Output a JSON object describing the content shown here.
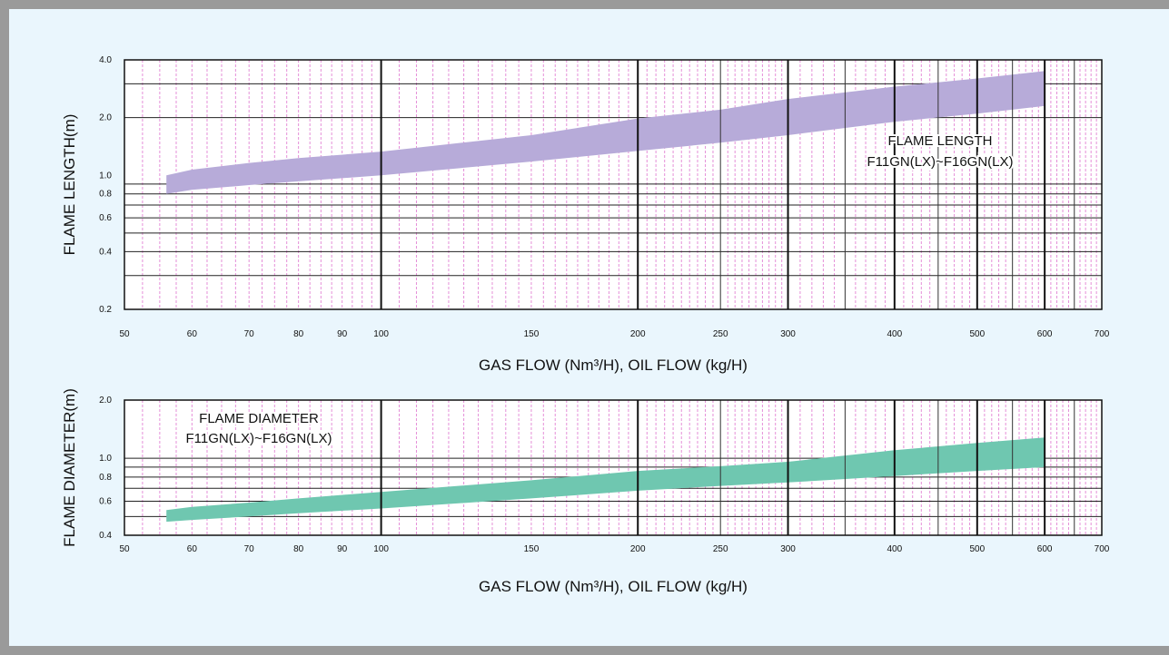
{
  "chart_data": [
    {
      "type": "area",
      "name": "flame-length",
      "x_scale": "log",
      "y_scale": "log",
      "xlim": [
        50,
        700
      ],
      "ylim": [
        0.2,
        4.0
      ],
      "x_ticks": [
        50,
        60,
        70,
        80,
        90,
        100,
        150,
        200,
        250,
        300,
        400,
        500,
        600,
        700
      ],
      "x_tick_labels": [
        "50",
        "60",
        "70",
        "80",
        "90",
        "100",
        "150",
        "200",
        "250",
        "300",
        "400",
        "500",
        "600",
        "700"
      ],
      "y_ticks": [
        0.2,
        0.4,
        0.6,
        0.8,
        1.0,
        2.0,
        4.0
      ],
      "y_tick_labels": [
        "0.2",
        "0.4",
        "0.6",
        "0.8",
        "1.0",
        "2.0",
        "4.0"
      ],
      "ylabel": "FLAME LENGTH(m)",
      "xlabel": "GAS FLOW  (Nm³/H), OIL FLOW (kg/H)",
      "annotation": [
        "FLAME LENGTH",
        "F11GN(LX)~F16GN(LX)"
      ],
      "color": "#b7abd9",
      "band": {
        "x": [
          56,
          60,
          70,
          80,
          100,
          150,
          200,
          250,
          300,
          400,
          500,
          600
        ],
        "lower": [
          0.8,
          0.84,
          0.89,
          0.93,
          1.0,
          1.18,
          1.34,
          1.48,
          1.62,
          1.9,
          2.1,
          2.3
        ],
        "upper": [
          1.0,
          1.07,
          1.16,
          1.23,
          1.33,
          1.62,
          1.98,
          2.2,
          2.5,
          2.9,
          3.2,
          3.5
        ]
      }
    },
    {
      "type": "area",
      "name": "flame-diameter",
      "x_scale": "log",
      "y_scale": "log",
      "xlim": [
        50,
        700
      ],
      "ylim": [
        0.4,
        2.0
      ],
      "x_ticks": [
        50,
        60,
        70,
        80,
        90,
        100,
        150,
        200,
        250,
        300,
        400,
        500,
        600,
        700
      ],
      "x_tick_labels": [
        "50",
        "60",
        "70",
        "80",
        "90",
        "100",
        "150",
        "200",
        "250",
        "300",
        "400",
        "500",
        "600",
        "700"
      ],
      "y_ticks": [
        0.4,
        0.6,
        0.8,
        1.0,
        2.0
      ],
      "y_tick_labels": [
        "0.4",
        "0.6",
        "0.8",
        "1.0",
        "2.0"
      ],
      "ylabel": "FLAME DIAMETER(m)",
      "xlabel": "GAS FLOW  (Nm³/H), OIL FLOW (kg/H)",
      "annotation": [
        "FLAME DIAMETER",
        "F11GN(LX)~F16GN(LX)"
      ],
      "color": "#6fc7b0",
      "band": {
        "x": [
          56,
          60,
          70,
          80,
          100,
          150,
          200,
          250,
          300,
          400,
          500,
          600
        ],
        "lower": [
          0.47,
          0.48,
          0.5,
          0.52,
          0.55,
          0.62,
          0.68,
          0.72,
          0.75,
          0.81,
          0.86,
          0.9
        ],
        "upper": [
          0.54,
          0.56,
          0.59,
          0.62,
          0.67,
          0.77,
          0.86,
          0.91,
          0.96,
          1.1,
          1.2,
          1.28
        ]
      }
    }
  ]
}
